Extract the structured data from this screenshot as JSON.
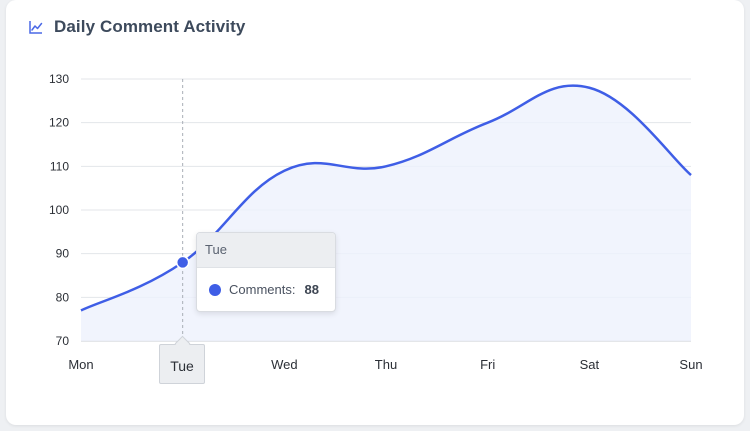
{
  "header": {
    "title": "Daily Comment Activity",
    "icon": "line-chart-icon"
  },
  "chart_data": {
    "type": "area",
    "title": "Daily Comment Activity",
    "categories": [
      "Mon",
      "Tue",
      "Wed",
      "Thu",
      "Fri",
      "Sat",
      "Sun"
    ],
    "series": [
      {
        "name": "Comments",
        "values": [
          77,
          88,
          109,
          110,
          120,
          128,
          108
        ]
      }
    ],
    "ylim": [
      70,
      130
    ],
    "yticks": [
      70,
      80,
      90,
      100,
      110,
      120,
      130
    ],
    "grid": true,
    "line_color": "#3f5ee6",
    "fill_color": "#eef1fd"
  },
  "tooltip": {
    "header": "Tue",
    "series_label": "Comments:",
    "value": "88"
  },
  "active_label": "Tue"
}
